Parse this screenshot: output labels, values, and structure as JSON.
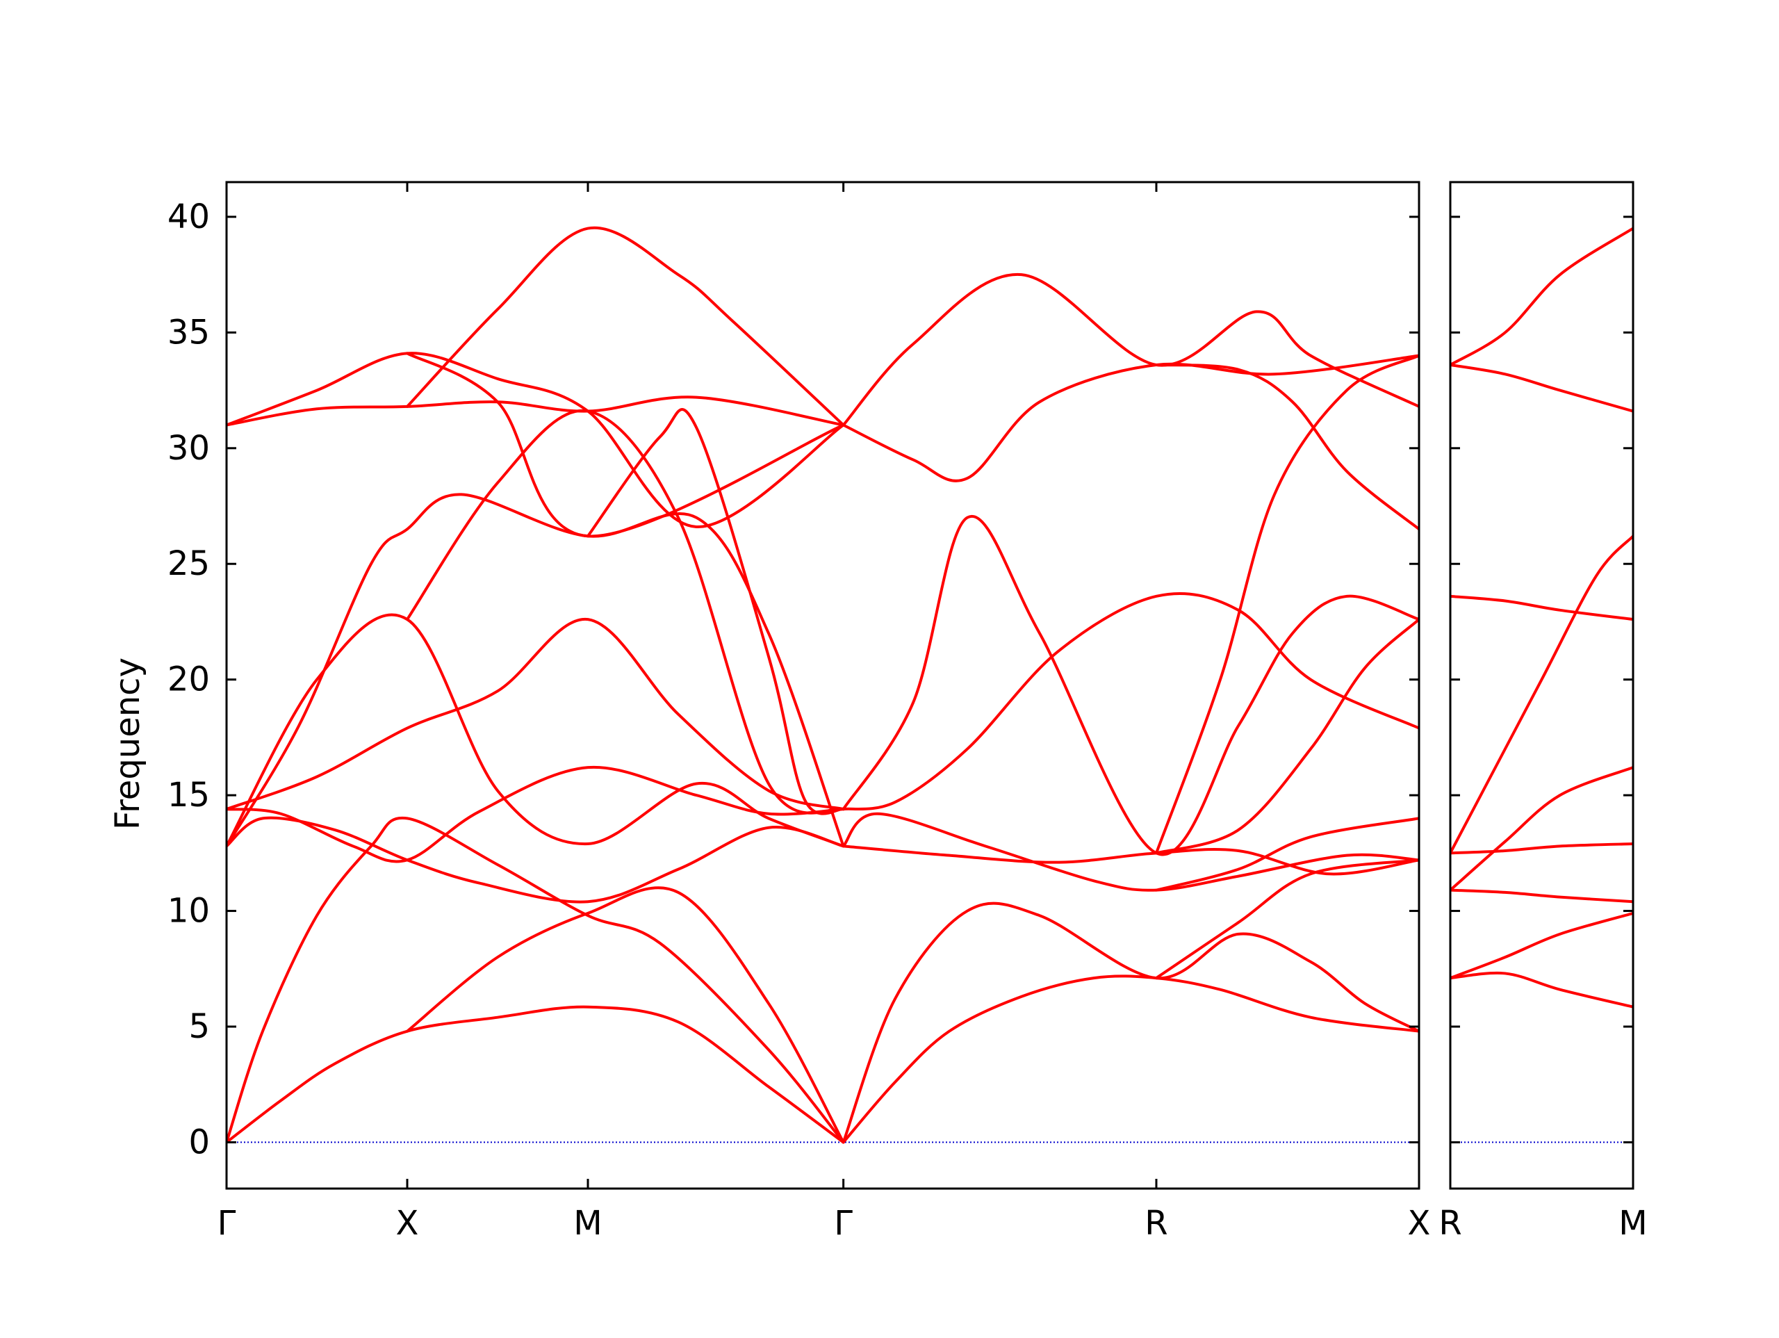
{
  "chart_data": {
    "type": "line",
    "title": "",
    "ylabel": "Frequency",
    "ylim": [
      -2,
      41.5
    ],
    "yticks": [
      0,
      5,
      10,
      15,
      20,
      25,
      30,
      35,
      40
    ],
    "ytick_labels": [
      "0",
      "5",
      "10",
      "15",
      "20",
      "25",
      "30",
      "35",
      "40"
    ],
    "grid": false,
    "legend": "none",
    "colors": {
      "bands": "#ff0000",
      "zero_line": "#0000cc",
      "axes": "#000000"
    },
    "panels": [
      {
        "xlim": [
          0,
          6.6
        ],
        "xticks": [
          0,
          1,
          2,
          3.414,
          5.146,
          6.6
        ],
        "xtick_labels": [
          "Γ",
          "X",
          "M",
          "Γ",
          "R",
          "X"
        ],
        "series": [
          {
            "x": [
              0,
              0.3,
              0.6,
              1.0,
              1.5,
              2.0,
              2.5,
              3.0,
              3.414
            ],
            "values": [
              0,
              1.8,
              3.4,
              4.8,
              5.4,
              5.85,
              5.2,
              2.4,
              0
            ]
          },
          {
            "x": [
              3.414,
              3.7,
              4.0,
              4.4,
              4.8,
              5.146,
              5.5,
              6.0,
              6.6
            ],
            "values": [
              0,
              2.6,
              4.8,
              6.3,
              7.1,
              7.1,
              6.6,
              5.4,
              4.8
            ]
          },
          {
            "x": [
              0,
              0.2,
              0.5,
              0.8,
              1.0,
              1.5,
              2.0,
              2.4,
              3.0,
              3.414
            ],
            "values": [
              0,
              4.8,
              9.8,
              12.8,
              14.0,
              12.0,
              9.8,
              8.6,
              4.0,
              0
            ]
          },
          {
            "x": [
              1.0,
              1.5,
              2.0,
              2.5,
              3.0,
              3.414
            ],
            "values": [
              4.8,
              8.0,
              9.9,
              10.8,
              6.0,
              0
            ]
          },
          {
            "x": [
              3.414,
              3.7,
              4.1,
              4.5,
              5.146,
              5.6,
              6.0,
              6.3,
              6.6
            ],
            "values": [
              0,
              6.2,
              10.0,
              9.8,
              7.1,
              9.0,
              7.8,
              6.0,
              4.8
            ]
          },
          {
            "x": [
              5.146,
              5.6,
              6.0,
              6.6
            ],
            "values": [
              7.1,
              9.5,
              11.6,
              12.2
            ]
          },
          {
            "x": [
              0,
              0.2,
              0.6,
              1.0,
              1.4,
              2.0,
              2.5,
              3.0,
              3.414
            ],
            "values": [
              12.8,
              14.0,
              13.5,
              12.2,
              11.2,
              10.4,
              11.8,
              13.6,
              12.8
            ]
          },
          {
            "x": [
              0,
              0.3,
              0.7,
              1.0,
              1.4,
              2.0,
              2.6,
              3.0,
              3.414
            ],
            "values": [
              14.4,
              14.2,
              12.8,
              12.2,
              14.3,
              16.2,
              15.0,
              14.2,
              14.4
            ]
          },
          {
            "x": [
              3.414,
              4.0,
              4.6,
              5.146,
              5.6,
              6.1,
              6.6
            ],
            "values": [
              12.8,
              12.4,
              12.1,
              12.5,
              12.6,
              11.6,
              12.2
            ]
          },
          {
            "x": [
              3.414,
              3.6,
              4.2,
              4.8,
              5.146,
              5.6,
              6.2,
              6.6
            ],
            "values": [
              12.8,
              14.2,
              12.8,
              11.3,
              10.9,
              11.5,
              12.4,
              12.2
            ]
          },
          {
            "x": [
              5.146,
              5.6,
              6.0,
              6.6
            ],
            "values": [
              10.9,
              11.8,
              13.2,
              14.0
            ]
          },
          {
            "x": [
              0,
              0.5,
              1.0,
              1.5,
              2.0,
              2.6,
              3.0,
              3.414
            ],
            "values": [
              12.8,
              20.0,
              22.6,
              15.2,
              12.9,
              15.5,
              14.0,
              12.8
            ]
          },
          {
            "x": [
              0,
              0.5,
              1.0,
              1.5,
              2.0,
              2.5,
              3.0,
              3.414
            ],
            "values": [
              14.4,
              15.8,
              17.9,
              19.5,
              22.6,
              18.5,
              15.2,
              14.4
            ]
          },
          {
            "x": [
              3.414,
              3.7,
              4.1,
              4.6,
              5.146,
              5.6,
              6.0,
              6.6
            ],
            "values": [
              14.4,
              14.7,
              17.0,
              21.2,
              23.6,
              23.0,
              20.0,
              17.9
            ]
          },
          {
            "x": [
              3.414,
              3.8,
              4.1,
              4.5,
              5.146,
              5.6,
              5.9,
              6.2,
              6.6
            ],
            "values": [
              14.4,
              19.0,
              27.0,
              22.0,
              12.5,
              18.0,
              22.0,
              23.6,
              22.6
            ]
          },
          {
            "x": [
              5.146,
              5.6,
              6.0,
              6.3,
              6.6
            ],
            "values": [
              12.5,
              13.5,
              17.0,
              20.5,
              22.6
            ]
          },
          {
            "x": [
              0,
              0.4,
              0.8,
              1.0,
              1.3,
              2.0,
              2.6,
              3.0,
              3.414
            ],
            "values": [
              12.8,
              18.0,
              25.0,
              26.5,
              28.0,
              26.2,
              27.0,
              22.0,
              12.8
            ]
          },
          {
            "x": [
              1.0,
              1.5,
              2.0,
              2.5,
              3.0,
              3.414
            ],
            "values": [
              22.6,
              28.5,
              31.6,
              27.0,
              15.5,
              14.4
            ]
          },
          {
            "x": [
              2.0,
              2.4,
              2.6,
              3.0,
              3.2,
              3.414
            ],
            "values": [
              26.2,
              30.5,
              30.9,
              21.0,
              14.8,
              14.4
            ]
          },
          {
            "x": [
              3.414,
              3.8,
              4.1,
              4.5,
              5.146,
              5.8,
              6.6
            ],
            "values": [
              31.0,
              29.5,
              28.7,
              32.0,
              33.6,
              33.2,
              34.0
            ]
          },
          {
            "x": [
              5.146,
              5.5,
              5.8,
              6.2,
              6.6
            ],
            "values": [
              12.5,
              20.0,
              28.0,
              32.5,
              34.0
            ]
          },
          {
            "x": [
              0,
              0.5,
              1.0,
              1.5,
              2.0,
              2.6,
              3.414
            ],
            "values": [
              31.0,
              31.7,
              31.8,
              32.0,
              31.6,
              32.2,
              31.0
            ]
          },
          {
            "x": [
              0,
              0.5,
              1.0,
              1.5,
              2.0,
              2.6,
              3.414
            ],
            "values": [
              31.0,
              32.5,
              34.1,
              33.0,
              31.6,
              26.6,
              31.0
            ]
          },
          {
            "x": [
              1.0,
              1.5,
              2.0,
              2.5,
              2.8,
              3.414
            ],
            "values": [
              31.8,
              36.0,
              39.5,
              37.5,
              35.5,
              31.0
            ]
          },
          {
            "x": [
              1.0,
              1.5,
              2.0,
              3.414
            ],
            "values": [
              34.1,
              32.0,
              26.2,
              31.0
            ]
          },
          {
            "x": [
              3.414,
              3.8,
              4.4,
              5.146,
              5.7,
              6.0,
              6.6
            ],
            "values": [
              31.0,
              34.5,
              37.5,
              33.6,
              35.9,
              34.0,
              31.8
            ]
          },
          {
            "x": [
              5.146,
              5.6,
              5.9,
              6.2,
              6.6
            ],
            "values": [
              33.6,
              33.4,
              32.0,
              29.0,
              26.5
            ]
          }
        ]
      },
      {
        "xlim": [
          0,
          1
        ],
        "xticks": [
          0,
          1
        ],
        "xtick_labels": [
          "R",
          "M"
        ],
        "series": [
          {
            "x": [
              0,
              0.3,
              0.6,
              1.0
            ],
            "values": [
              33.6,
              35.0,
              37.5,
              39.5
            ]
          },
          {
            "x": [
              0,
              0.3,
              0.6,
              1.0
            ],
            "values": [
              33.6,
              33.2,
              32.5,
              31.6
            ]
          },
          {
            "x": [
              0,
              0.2,
              0.5,
              0.8,
              1.0
            ],
            "values": [
              12.5,
              15.5,
              20.0,
              24.5,
              26.2
            ]
          },
          {
            "x": [
              0,
              0.3,
              0.6,
              1.0
            ],
            "values": [
              23.6,
              23.4,
              23.0,
              22.6
            ]
          },
          {
            "x": [
              0,
              0.3,
              0.6,
              1.0
            ],
            "values": [
              10.9,
              13.0,
              15.0,
              16.2
            ]
          },
          {
            "x": [
              0,
              0.3,
              0.6,
              1.0
            ],
            "values": [
              12.5,
              12.6,
              12.8,
              12.9
            ]
          },
          {
            "x": [
              0,
              0.3,
              0.6,
              1.0
            ],
            "values": [
              10.9,
              10.8,
              10.6,
              10.4
            ]
          },
          {
            "x": [
              0,
              0.3,
              0.6,
              1.0
            ],
            "values": [
              7.1,
              8.0,
              9.0,
              9.9
            ]
          },
          {
            "x": [
              0,
              0.3,
              0.6,
              1.0
            ],
            "values": [
              7.1,
              7.3,
              6.6,
              5.85
            ]
          }
        ]
      }
    ]
  }
}
